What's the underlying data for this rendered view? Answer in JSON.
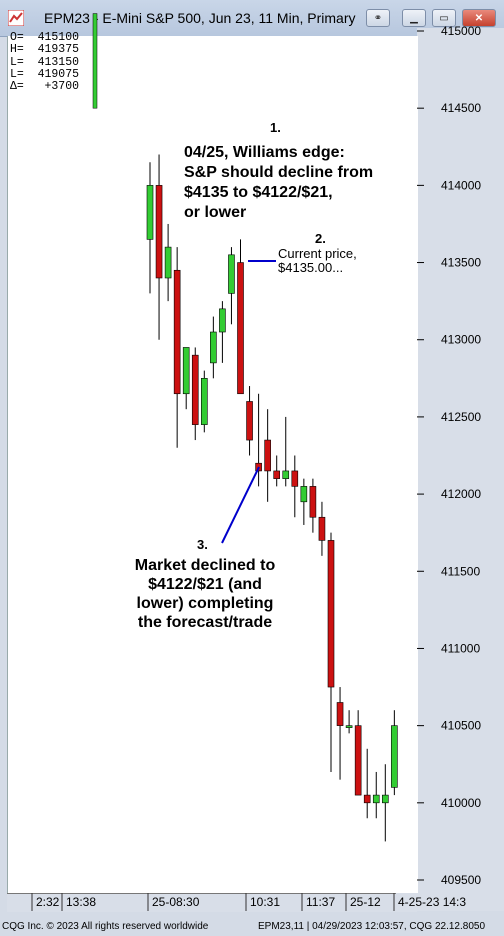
{
  "window": {
    "title": "EPM23 - E-Mini S&P 500, Jun 23, 11 Min, Primary",
    "buttons": [
      "settings",
      "minimize",
      "maximize",
      "close"
    ]
  },
  "ohlc_readout": {
    "open": "O=  415100",
    "high": "H=  419375",
    "low": "L=  413150",
    "last": "L=  419075",
    "change": "Δ=   +3700"
  },
  "annotations": {
    "a1_num": "1.",
    "a1_lines": [
      "04/25, Williams edge:",
      "S&P should decline from",
      "$4135 to $4122/$21,",
      "or lower"
    ],
    "a2_num": "2.",
    "a2_lines": [
      "Current price,",
      "$4135.00..."
    ],
    "a3_num": "3.",
    "a3_lines": [
      "Market declined to",
      "$4122/$21 (and",
      "lower) completing",
      "the forecast/trade"
    ]
  },
  "status_bar": {
    "copyright": "CQG Inc. © 2023 All rights reserved worldwide",
    "info": "EPM23,11 | 04/29/2023 12:03:57, CQG 22.12.8050"
  },
  "colors": {
    "up": "#33cc33",
    "down": "#cc1111",
    "wick": "#000000",
    "pointer": "#0000cc"
  },
  "chart_data": {
    "type": "candlestick",
    "symbol": "EPM23",
    "y_tick_labels": [
      "409500",
      "410000",
      "410500",
      "411000",
      "411500",
      "412000",
      "412500",
      "413000",
      "413500",
      "414000",
      "414500",
      "415000"
    ],
    "ylim": [
      409400,
      415200
    ],
    "x_tick_labels": [
      "2:32",
      "13:38",
      "25-08:30",
      "10:31",
      "11:37",
      "25-12",
      "4-25-23  14:3"
    ],
    "candles": [
      {
        "o": 413650,
        "h": 414150,
        "l": 413300,
        "c": 414000
      },
      {
        "o": 414000,
        "h": 414200,
        "l": 413000,
        "c": 413400
      },
      {
        "o": 413400,
        "h": 413750,
        "l": 413250,
        "c": 413600
      },
      {
        "o": 413450,
        "h": 413600,
        "l": 412300,
        "c": 412650
      },
      {
        "o": 412650,
        "h": 412950,
        "l": 412550,
        "c": 412950
      },
      {
        "o": 412900,
        "h": 412950,
        "l": 412350,
        "c": 412450
      },
      {
        "o": 412450,
        "h": 412800,
        "l": 412400,
        "c": 412750
      },
      {
        "o": 412850,
        "h": 413150,
        "l": 412750,
        "c": 413050
      },
      {
        "o": 413050,
        "h": 413250,
        "l": 412850,
        "c": 413200
      },
      {
        "o": 413300,
        "h": 413600,
        "l": 413100,
        "c": 413550
      },
      {
        "o": 413500,
        "h": 413650,
        "l": 412700,
        "c": 412650
      },
      {
        "o": 412600,
        "h": 412700,
        "l": 412250,
        "c": 412350
      },
      {
        "o": 412200,
        "h": 412650,
        "l": 412050,
        "c": 412150
      },
      {
        "o": 412350,
        "h": 412550,
        "l": 411950,
        "c": 412150
      },
      {
        "o": 412150,
        "h": 412250,
        "l": 412050,
        "c": 412100
      },
      {
        "o": 412100,
        "h": 412500,
        "l": 412050,
        "c": 412150
      },
      {
        "o": 412150,
        "h": 412250,
        "l": 411850,
        "c": 412050
      },
      {
        "o": 411950,
        "h": 412100,
        "l": 411800,
        "c": 412050
      },
      {
        "o": 412050,
        "h": 412100,
        "l": 411750,
        "c": 411850
      },
      {
        "o": 411850,
        "h": 411950,
        "l": 411600,
        "c": 411700
      },
      {
        "o": 411700,
        "h": 411750,
        "l": 410200,
        "c": 410750
      },
      {
        "o": 410650,
        "h": 410750,
        "l": 410150,
        "c": 410500
      },
      {
        "o": 410500,
        "h": 410600,
        "l": 410450,
        "c": 410500
      },
      {
        "o": 410500,
        "h": 410600,
        "l": 410100,
        "c": 410050
      },
      {
        "o": 410050,
        "h": 410350,
        "l": 409900,
        "c": 410000
      },
      {
        "o": 410000,
        "h": 410200,
        "l": 409900,
        "c": 410050
      },
      {
        "o": 410000,
        "h": 410250,
        "l": 409750,
        "c": 410050
      },
      {
        "o": 410100,
        "h": 410600,
        "l": 410050,
        "c": 410500
      }
    ]
  }
}
